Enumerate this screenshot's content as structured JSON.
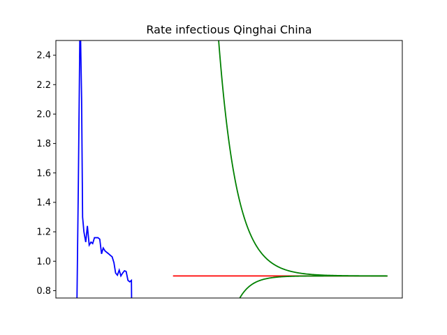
{
  "chart_data": {
    "type": "line",
    "title": "Rate infectious Qinghai China",
    "xlabel": "",
    "ylabel": "",
    "x_ticks_visible": false,
    "xlim": [
      0,
      210
    ],
    "ylim": [
      0.75,
      2.5
    ],
    "y_ticks": [
      0.8,
      1.0,
      1.2,
      1.4,
      1.6,
      1.8,
      2.0,
      2.2,
      2.4
    ],
    "y_tick_labels": [
      "0.8",
      "1.0",
      "1.2",
      "1.4",
      "1.6",
      "1.8",
      "2.0",
      "2.2",
      "2.4"
    ],
    "grid": false,
    "series": [
      {
        "color": "#0000ff",
        "points": [
          [
            12.8,
            0.75
          ],
          [
            13.6,
            1.5
          ],
          [
            14.5,
            2.5
          ],
          [
            15.0,
            2.5
          ],
          [
            15.6,
            2.1
          ],
          [
            16.2,
            1.3
          ],
          [
            17.0,
            1.2
          ],
          [
            18.1,
            1.13
          ],
          [
            19.1,
            1.24
          ],
          [
            20.2,
            1.11
          ],
          [
            21.3,
            1.13
          ],
          [
            22.3,
            1.12
          ],
          [
            23.4,
            1.16
          ],
          [
            25.5,
            1.16
          ],
          [
            26.6,
            1.15
          ],
          [
            27.7,
            1.05
          ],
          [
            28.7,
            1.09
          ],
          [
            29.8,
            1.07
          ],
          [
            30.9,
            1.06
          ],
          [
            32.0,
            1.05
          ],
          [
            33.0,
            1.04
          ],
          [
            34.1,
            1.03
          ],
          [
            35.2,
            0.99
          ],
          [
            36.2,
            0.92
          ],
          [
            37.3,
            0.905
          ],
          [
            38.4,
            0.94
          ],
          [
            39.4,
            0.9
          ],
          [
            40.5,
            0.92
          ],
          [
            41.6,
            0.935
          ],
          [
            42.6,
            0.93
          ],
          [
            43.7,
            0.87
          ],
          [
            44.8,
            0.86
          ],
          [
            45.8,
            0.87
          ],
          [
            45.9,
            0.75
          ]
        ]
      },
      {
        "color": "#ff0000",
        "points": [
          [
            71,
            0.9
          ],
          [
            201,
            0.9
          ]
        ]
      },
      {
        "color": "#008000",
        "type": "decay",
        "start": 98,
        "end": 201,
        "asymptote": 0.9,
        "amplitude": 1.7,
        "rate": 0.09,
        "direction": "above"
      },
      {
        "color": "#008000",
        "type": "decay",
        "start": 111,
        "end": 201,
        "asymptote": 0.9,
        "amplitude": 0.16,
        "rate": 0.13,
        "direction": "below"
      }
    ]
  }
}
